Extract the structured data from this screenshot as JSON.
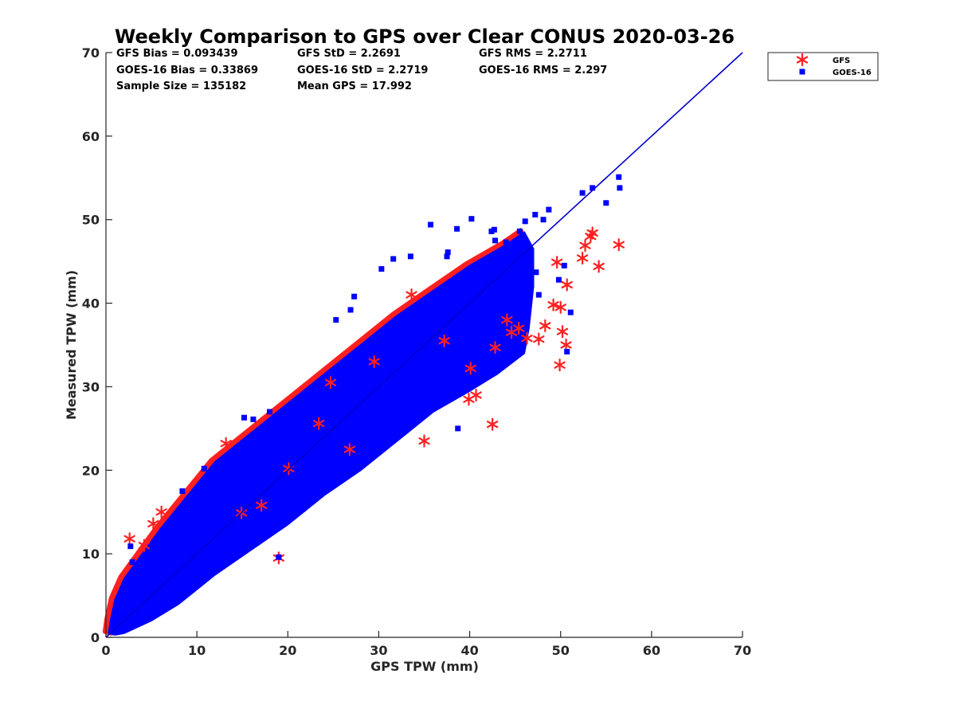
{
  "chart_data": {
    "type": "scatter",
    "title": "Weekly Comparison to GPS over Clear CONUS 2020-03-26",
    "xlabel": "GPS TPW (mm)",
    "ylabel": "Measured TPW (mm)",
    "xlim": [
      0,
      70
    ],
    "ylim": [
      0,
      70
    ],
    "xticks": [
      "0",
      "10",
      "20",
      "30",
      "40",
      "50",
      "60",
      "70"
    ],
    "yticks": [
      "0",
      "10",
      "20",
      "30",
      "40",
      "50",
      "60",
      "70"
    ],
    "grid": false,
    "legend_position": "outside-top-right",
    "stats": [
      [
        "GFS Bias = 0.093439",
        "GFS StD = 2.2691",
        "GFS RMS = 2.2711"
      ],
      [
        "GOES-16 Bias = 0.33869",
        "GOES-16 StD = 2.2719",
        "GOES-16 RMS = 2.297"
      ],
      [
        "Sample Size = 135182",
        "Mean GPS = 17.992"
      ]
    ],
    "reference_line": {
      "x": [
        0,
        70
      ],
      "y": [
        0,
        70
      ],
      "color": "#0000cc"
    },
    "series": [
      {
        "name": "GFS",
        "marker": "asterisk",
        "color": "#ff2020",
        "x": [
          13.2,
          2.6,
          6.1,
          5.2,
          4.2,
          33.6,
          37.2,
          39.9,
          40.7,
          44.1,
          42.5,
          24.7,
          29.5,
          26.8,
          17.1,
          20.1,
          14.9,
          19.0,
          23.4,
          35.0,
          40.1,
          42.8,
          44.6,
          45.4,
          46.3,
          47.6,
          48.3,
          49.2,
          50.0,
          49.6,
          50.7,
          50.2,
          49.9,
          50.6,
          52.4,
          52.7,
          53.3,
          53.5,
          54.2,
          56.4
        ],
        "y": [
          23.2,
          11.8,
          15.0,
          13.6,
          11.0,
          41.0,
          35.5,
          28.5,
          29.0,
          38.0,
          25.5,
          30.5,
          33.0,
          22.5,
          15.8,
          20.2,
          14.9,
          9.5,
          25.6,
          23.5,
          32.2,
          34.7,
          36.5,
          37.0,
          35.8,
          35.7,
          37.3,
          39.8,
          39.5,
          44.9,
          42.2,
          36.6,
          32.6,
          35.0,
          45.4,
          46.9,
          48.0,
          48.4,
          44.4,
          47.0
        ]
      },
      {
        "name": "GOES-16",
        "marker": "square",
        "color": "#0000ff",
        "x": [
          56.4,
          56.5,
          53.5,
          52.4,
          55.0,
          48.7,
          48.1,
          47.2,
          46.1,
          45.5,
          44.0,
          42.4,
          40.2,
          38.6,
          37.6,
          35.7,
          33.5,
          31.6,
          30.3,
          27.3,
          25.3,
          26.9,
          15.2,
          10.8,
          8.4,
          16.2,
          18.0,
          38.7,
          19.0,
          47.6,
          50.4,
          51.1,
          50.7,
          49.8,
          47.3,
          45.9,
          42.8,
          42.7,
          37.5,
          2.7,
          2.9
        ],
        "y": [
          55.1,
          53.8,
          53.8,
          53.2,
          52.0,
          51.2,
          50.0,
          50.6,
          49.8,
          48.6,
          47.3,
          48.6,
          50.1,
          48.9,
          46.1,
          49.4,
          45.6,
          45.3,
          44.1,
          40.8,
          38.0,
          39.2,
          26.3,
          20.2,
          17.5,
          26.1,
          27.0,
          25.0,
          9.6,
          41.0,
          44.5,
          38.9,
          34.2,
          42.8,
          43.7,
          46.0,
          47.5,
          48.8,
          45.6,
          10.9,
          9.0
        ]
      }
    ]
  }
}
